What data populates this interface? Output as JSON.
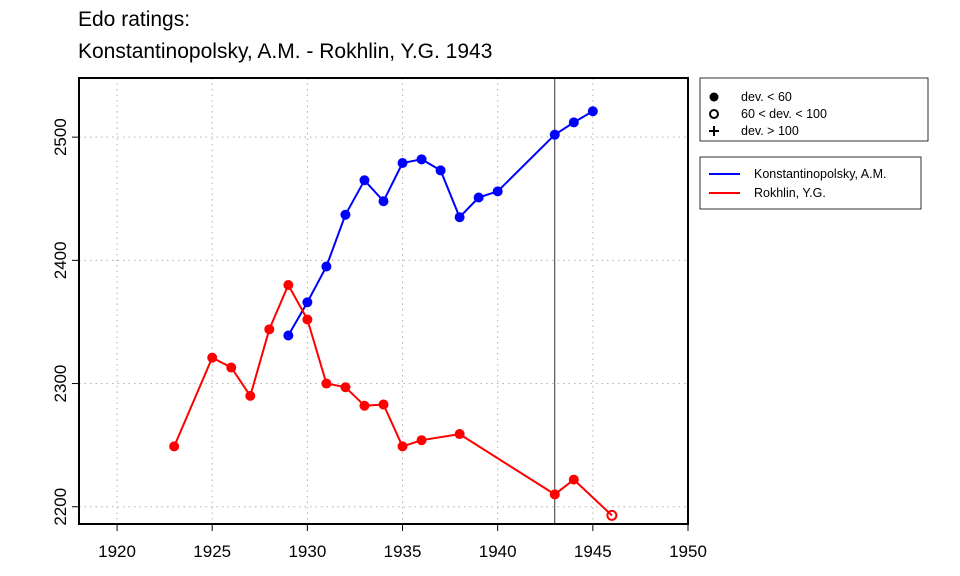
{
  "page": {
    "title_line1": "Edo ratings:",
    "title_line2": "Konstantinopolsky, A.M. - Rokhlin, Y.G. 1943"
  },
  "chart_data": {
    "type": "line",
    "title": "Edo ratings:",
    "subtitle": "Konstantinopolsky, A.M. - Rokhlin, Y.G. 1943",
    "xlim": [
      1918,
      1950
    ],
    "ylim": [
      2186,
      2548
    ],
    "x_ticks": [
      1920,
      1925,
      1930,
      1935,
      1940,
      1945,
      1950
    ],
    "x_tick_labels": [
      "1920",
      "1925",
      "1930",
      "1935",
      "1940",
      "1945",
      "1950"
    ],
    "y_ticks": [
      2200,
      2300,
      2400,
      2500
    ],
    "y_tick_labels": [
      "2200",
      "2300",
      "2400",
      "2500"
    ],
    "grid": true,
    "reference_line_x": 1943,
    "series": [
      {
        "name": "Konstantinopolsky, A.M.",
        "color": "#0000ff",
        "points": [
          {
            "x": 1929,
            "y": 2339,
            "dev": "lt60"
          },
          {
            "x": 1930,
            "y": 2366,
            "dev": "lt60"
          },
          {
            "x": 1931,
            "y": 2395,
            "dev": "lt60"
          },
          {
            "x": 1932,
            "y": 2437,
            "dev": "lt60"
          },
          {
            "x": 1933,
            "y": 2465,
            "dev": "lt60"
          },
          {
            "x": 1934,
            "y": 2448,
            "dev": "lt60"
          },
          {
            "x": 1935,
            "y": 2479,
            "dev": "lt60"
          },
          {
            "x": 1936,
            "y": 2482,
            "dev": "lt60"
          },
          {
            "x": 1937,
            "y": 2473,
            "dev": "lt60"
          },
          {
            "x": 1938,
            "y": 2435,
            "dev": "lt60"
          },
          {
            "x": 1939,
            "y": 2451,
            "dev": "lt60"
          },
          {
            "x": 1940,
            "y": 2456,
            "dev": "lt60"
          },
          {
            "x": 1943,
            "y": 2502,
            "dev": "lt60"
          },
          {
            "x": 1944,
            "y": 2512,
            "dev": "lt60"
          },
          {
            "x": 1945,
            "y": 2521,
            "dev": "lt60"
          }
        ]
      },
      {
        "name": "Rokhlin, Y.G.",
        "color": "#ff0000",
        "points": [
          {
            "x": 1923,
            "y": 2249,
            "dev": "lt60"
          },
          {
            "x": 1925,
            "y": 2321,
            "dev": "lt60"
          },
          {
            "x": 1926,
            "y": 2313,
            "dev": "lt60"
          },
          {
            "x": 1927,
            "y": 2290,
            "dev": "lt60"
          },
          {
            "x": 1928,
            "y": 2344,
            "dev": "lt60"
          },
          {
            "x": 1929,
            "y": 2380,
            "dev": "lt60"
          },
          {
            "x": 1930,
            "y": 2352,
            "dev": "lt60"
          },
          {
            "x": 1931,
            "y": 2300,
            "dev": "lt60"
          },
          {
            "x": 1932,
            "y": 2297,
            "dev": "lt60"
          },
          {
            "x": 1933,
            "y": 2282,
            "dev": "lt60"
          },
          {
            "x": 1934,
            "y": 2283,
            "dev": "lt60"
          },
          {
            "x": 1935,
            "y": 2249,
            "dev": "lt60"
          },
          {
            "x": 1936,
            "y": 2254,
            "dev": "lt60"
          },
          {
            "x": 1938,
            "y": 2259,
            "dev": "lt60"
          },
          {
            "x": 1943,
            "y": 2210,
            "dev": "lt60"
          },
          {
            "x": 1944,
            "y": 2222,
            "dev": "lt60"
          },
          {
            "x": 1946,
            "y": 2193,
            "dev": "60to100"
          }
        ]
      }
    ],
    "symbol_legend": {
      "placement": "top-right outside plot",
      "entries": [
        {
          "symbol": "filled-circle",
          "label": "dev. < 60"
        },
        {
          "symbol": "open-circle",
          "label": "60 < dev. < 100"
        },
        {
          "symbol": "plus",
          "label": "dev. > 100"
        }
      ]
    },
    "series_legend": {
      "placement": "right outside plot",
      "entries": [
        {
          "label": "Konstantinopolsky, A.M.",
          "color": "#0000ff"
        },
        {
          "label": "Rokhlin, Y.G.",
          "color": "#ff0000"
        }
      ]
    }
  }
}
